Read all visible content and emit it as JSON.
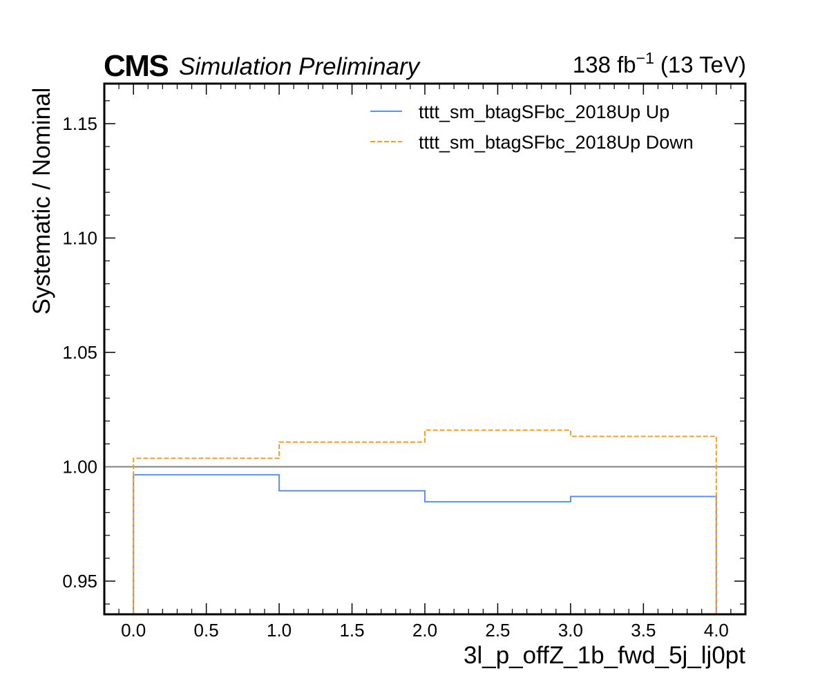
{
  "header": {
    "experiment": "CMS",
    "status": "Simulation Preliminary",
    "lumi_value": "138 fb",
    "lumi_exponent": "−1",
    "energy": "(13 TeV)"
  },
  "chart_data": {
    "type": "line",
    "drawstyle": "steps",
    "xlabel": "3l_p_offZ_1b_fwd_5j_lj0pt",
    "ylabel": "Systematic / Nominal",
    "xlim": [
      -0.2,
      4.2
    ],
    "ylim": [
      0.9355,
      1.1675
    ],
    "xticks": [
      0.0,
      0.5,
      1.0,
      1.5,
      2.0,
      2.5,
      3.0,
      3.5,
      4.0
    ],
    "xtick_labels": [
      "0.0",
      "0.5",
      "1.0",
      "1.5",
      "2.0",
      "2.5",
      "3.0",
      "3.5",
      "4.0"
    ],
    "yticks": [
      0.95,
      1.0,
      1.05,
      1.1,
      1.15
    ],
    "ytick_labels": [
      "0.95",
      "1.00",
      "1.05",
      "1.10",
      "1.15"
    ],
    "bin_edges": [
      0,
      1,
      2,
      3,
      4
    ],
    "reference_line": 1.0,
    "legend_position": "top-right",
    "series": [
      {
        "name": "tttt_sm_btagSFbc_2018Up Up",
        "values": [
          0.9965,
          0.9895,
          0.9847,
          0.987
        ],
        "color": "#5790fc",
        "dash": "solid"
      },
      {
        "name": "tttt_sm_btagSFbc_2018Up Down",
        "values": [
          1.0037,
          1.0108,
          1.016,
          1.0133
        ],
        "color": "#f89c20",
        "dash": "dashed"
      }
    ],
    "reference_color": "#808080"
  }
}
